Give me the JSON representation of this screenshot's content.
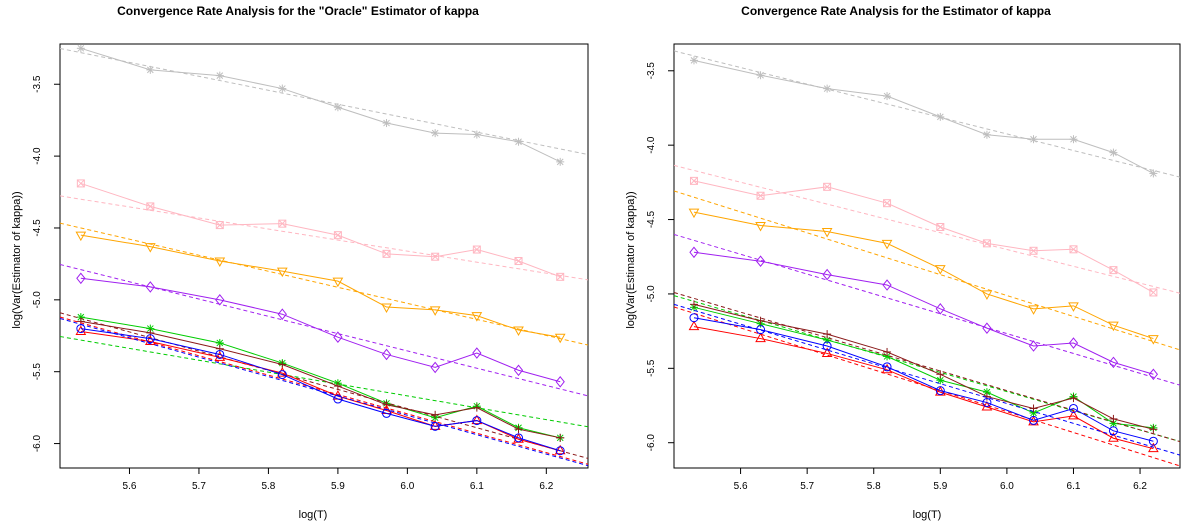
{
  "chart_data": [
    {
      "type": "line",
      "title": "Convergence Rate Analysis for the \"Oracle\" Estimator of kappa",
      "xlabel": "log(T)",
      "ylabel": "log(Var(Estimator of kappa))",
      "xlim": [
        5.5,
        6.26
      ],
      "ylim": [
        -6.17,
        -3.22
      ],
      "xticks": [
        "5.6",
        "5.7",
        "5.8",
        "5.9",
        "6.0",
        "6.1",
        "6.2"
      ],
      "yticks": [
        "-3.5",
        "-4.0",
        "-4.5",
        "-5.0",
        "-5.5",
        "-6.0"
      ],
      "x": [
        5.53,
        5.63,
        5.73,
        5.82,
        5.9,
        5.97,
        6.04,
        6.1,
        6.16,
        6.22
      ],
      "series": [
        {
          "color": "#bebebe",
          "marker": "asterisk",
          "values": [
            -3.25,
            -3.4,
            -3.44,
            -3.53,
            -3.66,
            -3.77,
            -3.84,
            -3.85,
            -3.9,
            -4.04
          ],
          "fit": [
            -3.28,
            -3.95
          ]
        },
        {
          "color": "#ffb6c1",
          "marker": "boxx",
          "values": [
            -4.19,
            -4.35,
            -4.48,
            -4.47,
            -4.55,
            -4.68,
            -4.7,
            -4.65,
            -4.73,
            -4.84
          ],
          "fit": [
            -4.3,
            -4.83
          ]
        },
        {
          "color": "#ffa500",
          "marker": "triangle-down",
          "values": [
            -4.55,
            -4.63,
            -4.73,
            -4.8,
            -4.87,
            -5.05,
            -5.07,
            -5.11,
            -5.21,
            -5.26
          ],
          "fit": [
            -4.5,
            -5.27
          ]
        },
        {
          "color": "#a020f0",
          "marker": "diamond",
          "values": [
            -4.85,
            -4.91,
            -5.0,
            -5.1,
            -5.26,
            -5.38,
            -5.47,
            -5.37,
            -5.49,
            -5.57
          ],
          "fit": [
            -4.79,
            -5.62
          ]
        },
        {
          "color": "#00cc00",
          "marker": "asterisk",
          "values": [
            -5.12,
            -5.2,
            -5.3,
            -5.44,
            -5.58,
            -5.72,
            -5.82,
            -5.74,
            -5.89,
            -5.96
          ],
          "fit": [
            -5.28,
            -5.85
          ]
        },
        {
          "color": "#8b1a1a",
          "marker": "plus",
          "values": [
            -5.15,
            -5.23,
            -5.34,
            -5.45,
            -5.6,
            -5.73,
            -5.8,
            -5.75,
            -5.9,
            -5.96
          ],
          "fit": [
            -5.13,
            -6.05
          ]
        },
        {
          "color": "#ff0000",
          "marker": "triangle",
          "values": [
            -5.22,
            -5.29,
            -5.4,
            -5.51,
            -5.67,
            -5.77,
            -5.88,
            -5.84,
            -5.97,
            -6.05
          ],
          "fit": [
            -5.16,
            -6.09
          ]
        },
        {
          "color": "#0000ff",
          "marker": "circle",
          "values": [
            -5.2,
            -5.27,
            -5.38,
            -5.52,
            -5.69,
            -5.79,
            -5.88,
            -5.84,
            -5.96,
            -6.05
          ],
          "fit": [
            -5.17,
            -6.1
          ]
        }
      ]
    },
    {
      "type": "line",
      "title": "Convergence Rate Analysis for the Estimator of kappa",
      "xlabel": "log(T)",
      "ylabel": "log(Var(Estimator of kappa))",
      "xlim": [
        5.5,
        6.26
      ],
      "ylim": [
        -6.17,
        -3.32
      ],
      "xticks": [
        "5.6",
        "5.7",
        "5.8",
        "5.9",
        "6.0",
        "6.1",
        "6.2"
      ],
      "yticks": [
        "-3.5",
        "-4.0",
        "-4.5",
        "-5.0",
        "-5.5",
        "-6.0"
      ],
      "x": [
        5.53,
        5.63,
        5.73,
        5.82,
        5.9,
        5.97,
        6.04,
        6.1,
        6.16,
        6.22
      ],
      "series": [
        {
          "color": "#bebebe",
          "marker": "asterisk",
          "values": [
            -3.43,
            -3.53,
            -3.62,
            -3.67,
            -3.81,
            -3.93,
            -3.96,
            -3.96,
            -4.05,
            -4.19
          ],
          "fit": [
            -3.4,
            -4.17
          ]
        },
        {
          "color": "#ffb6c1",
          "marker": "boxx",
          "values": [
            -4.24,
            -4.34,
            -4.28,
            -4.39,
            -4.55,
            -4.66,
            -4.71,
            -4.7,
            -4.84,
            -4.99
          ],
          "fit": [
            -4.17,
            -4.95
          ]
        },
        {
          "color": "#ffa500",
          "marker": "triangle-down",
          "values": [
            -4.45,
            -4.54,
            -4.58,
            -4.66,
            -4.83,
            -5.0,
            -5.1,
            -5.08,
            -5.21,
            -5.3
          ],
          "fit": [
            -4.35,
            -5.32
          ]
        },
        {
          "color": "#a020f0",
          "marker": "diamond",
          "values": [
            -4.72,
            -4.78,
            -4.87,
            -4.94,
            -5.1,
            -5.23,
            -5.35,
            -5.33,
            -5.46,
            -5.54
          ],
          "fit": [
            -4.64,
            -5.56
          ]
        },
        {
          "color": "#00cc00",
          "marker": "asterisk",
          "values": [
            -5.09,
            -5.2,
            -5.31,
            -5.42,
            -5.58,
            -5.66,
            -5.8,
            -5.69,
            -5.87,
            -5.9
          ],
          "fit": [
            -5.05,
            -5.94
          ]
        },
        {
          "color": "#8b1a1a",
          "marker": "plus",
          "values": [
            -5.07,
            -5.18,
            -5.27,
            -5.39,
            -5.54,
            -5.69,
            -5.77,
            -5.7,
            -5.84,
            -5.91
          ],
          "fit": [
            -5.03,
            -5.94
          ]
        },
        {
          "color": "#ff0000",
          "marker": "triangle",
          "values": [
            -5.22,
            -5.3,
            -5.4,
            -5.51,
            -5.66,
            -5.76,
            -5.86,
            -5.82,
            -5.97,
            -6.04
          ],
          "fit": [
            -5.13,
            -6.1
          ]
        },
        {
          "color": "#0000ff",
          "marker": "circle",
          "values": [
            -5.16,
            -5.24,
            -5.35,
            -5.49,
            -5.65,
            -5.73,
            -5.85,
            -5.77,
            -5.92,
            -5.99
          ],
          "fit": [
            -5.11,
            -6.03
          ]
        }
      ]
    }
  ]
}
